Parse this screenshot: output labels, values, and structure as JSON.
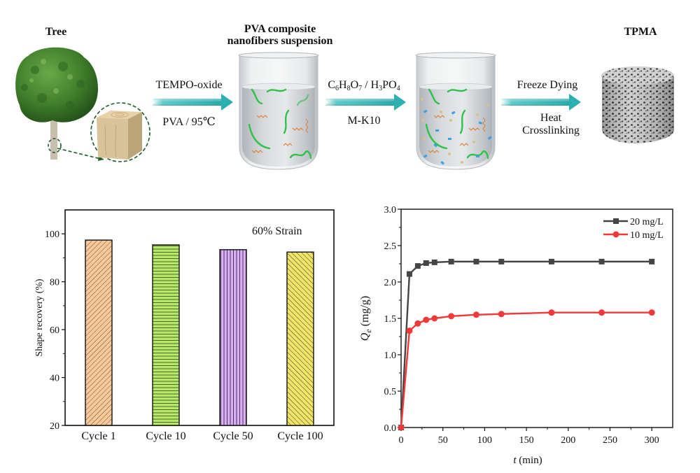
{
  "scheme": {
    "stages": [
      {
        "id": "tree",
        "label": "Tree"
      },
      {
        "id": "suspension",
        "label_line1": "PVA composite",
        "label_line2": "nanofibers suspension"
      },
      {
        "id": "mixture",
        "label": ""
      },
      {
        "id": "product",
        "label": "TPMA"
      }
    ],
    "arrows": [
      {
        "above": "TEMPO-oxide",
        "below": "PVA / 95℃"
      },
      {
        "above_parts": [
          "C",
          "6",
          "H",
          "8",
          "O",
          "7",
          " / H",
          "3",
          "PO",
          "4"
        ],
        "below": "M-K10"
      },
      {
        "above": "Freeze Dying",
        "below_line1": "Heat",
        "below_line2": "Crosslinking"
      }
    ],
    "colors": {
      "arrow": "#2fb0b0",
      "foliage": "#3f7d2a",
      "wood": "#d8c19a",
      "fiber_green": "#2ec24a",
      "fiber_orange": "#e07a2a",
      "particle_blue": "#3aa0e8",
      "particle_tan": "#d8c28a",
      "zoom_dash": "#1f5a2a"
    }
  },
  "chart_data": [
    {
      "type": "bar",
      "title": "",
      "annotation": "60% Strain",
      "xlabel": "",
      "ylabel": "Shape recovery (%)",
      "categories": [
        "Cycle 1",
        "Cycle 10",
        "Cycle 50",
        "Cycle 100"
      ],
      "values": [
        97.4,
        95.4,
        93.4,
        92.4
      ],
      "colors": [
        "#f9c99a",
        "#b8e86a",
        "#d9aef5",
        "#f0e46a"
      ],
      "patterns": [
        "diagonal-up",
        "horizontal",
        "vertical",
        "diagonal-down"
      ],
      "ylim": [
        20,
        110
      ],
      "yticks": [
        20,
        40,
        60,
        80,
        100
      ],
      "grid": false
    },
    {
      "type": "line",
      "title": "",
      "xlabel_italic": "t",
      "xlabel_rest": " (min)",
      "ylabel_italic": "Q",
      "ylabel_sub": "e",
      "ylabel_rest": " (mg/g)",
      "x": [
        0,
        10,
        20,
        30,
        40,
        60,
        90,
        120,
        180,
        240,
        300
      ],
      "series": [
        {
          "name": "20 mg/L",
          "color": "#454545",
          "marker": "square",
          "values": [
            0,
            2.11,
            2.22,
            2.26,
            2.27,
            2.28,
            2.28,
            2.28,
            2.28,
            2.28,
            2.28
          ]
        },
        {
          "name": "10 mg/L",
          "color": "#f03a3a",
          "marker": "circle",
          "values": [
            0,
            1.33,
            1.43,
            1.48,
            1.5,
            1.53,
            1.55,
            1.56,
            1.58,
            1.58,
            1.58
          ]
        }
      ],
      "xlim": [
        0,
        325
      ],
      "ylim": [
        0,
        3.0
      ],
      "xticks": [
        0,
        50,
        100,
        150,
        200,
        250,
        300
      ],
      "yticks": [
        0.0,
        0.5,
        1.0,
        1.5,
        2.0,
        2.5,
        3.0
      ],
      "ytick_labels": [
        "0.0",
        "0.5",
        "1.0",
        "1.5",
        "2.0",
        "2.5",
        "3.0"
      ],
      "legend": "top-right",
      "grid": false
    }
  ]
}
